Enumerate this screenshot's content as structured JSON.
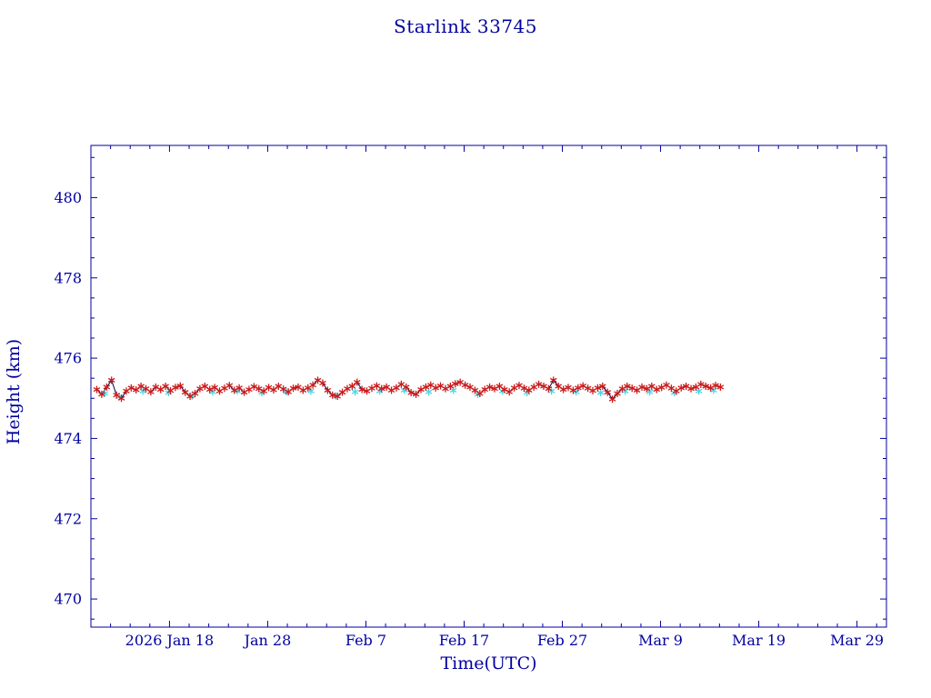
{
  "chart_data": {
    "type": "scatter",
    "title": "Starlink 33745",
    "xlabel": "Time(UTC)",
    "ylabel": "Height (km)",
    "x_axis": {
      "unit": "days from 2026 Jan 10 UTC",
      "range": [
        0,
        81
      ],
      "major_ticks": [
        {
          "day": 8,
          "label": "2026 Jan 18"
        },
        {
          "day": 18,
          "label": "Jan 28"
        },
        {
          "day": 28,
          "label": "Feb 7"
        },
        {
          "day": 38,
          "label": "Feb 17"
        },
        {
          "day": 48,
          "label": "Feb 27"
        },
        {
          "day": 58,
          "label": "Mar 9"
        },
        {
          "day": 68,
          "label": "Mar 19"
        },
        {
          "day": 78,
          "label": "Mar 29"
        }
      ],
      "minor_tick_step": 2
    },
    "y_axis": {
      "range": [
        469.3,
        481.3
      ],
      "major_ticks": [
        470,
        472,
        474,
        476,
        478,
        480
      ],
      "minor_tick_step": 0.5
    },
    "grid": false,
    "legend": "none",
    "colors": {
      "axis": "#0000a0",
      "line": "#000040",
      "red_marker": "#cc1a1a",
      "cyan_marker": "#49d5e6"
    },
    "series": [
      {
        "name": "red-series",
        "marker": "asterisk",
        "color_key": "red_marker",
        "connect": true,
        "points": [
          [
            0.6,
            475.22
          ],
          [
            1.1,
            475.1
          ],
          [
            1.6,
            475.28
          ],
          [
            2.1,
            475.45
          ],
          [
            2.6,
            475.08
          ],
          [
            3.1,
            475.0
          ],
          [
            3.6,
            475.18
          ],
          [
            4.1,
            475.26
          ],
          [
            4.6,
            475.21
          ],
          [
            5.1,
            475.3
          ],
          [
            5.6,
            475.24
          ],
          [
            6.1,
            475.16
          ],
          [
            6.6,
            475.28
          ],
          [
            7.1,
            475.22
          ],
          [
            7.6,
            475.3
          ],
          [
            8.1,
            475.19
          ],
          [
            8.6,
            475.27
          ],
          [
            9.1,
            475.31
          ],
          [
            9.6,
            475.15
          ],
          [
            10.1,
            475.05
          ],
          [
            10.6,
            475.12
          ],
          [
            11.1,
            475.24
          ],
          [
            11.6,
            475.3
          ],
          [
            12.1,
            475.22
          ],
          [
            12.6,
            475.27
          ],
          [
            13.1,
            475.18
          ],
          [
            13.6,
            475.25
          ],
          [
            14.1,
            475.32
          ],
          [
            14.6,
            475.2
          ],
          [
            15.1,
            475.26
          ],
          [
            15.6,
            475.15
          ],
          [
            16.1,
            475.22
          ],
          [
            16.6,
            475.29
          ],
          [
            17.1,
            475.24
          ],
          [
            17.6,
            475.18
          ],
          [
            18.1,
            475.27
          ],
          [
            18.6,
            475.21
          ],
          [
            19.1,
            475.3
          ],
          [
            19.6,
            475.23
          ],
          [
            20.1,
            475.16
          ],
          [
            20.6,
            475.25
          ],
          [
            21.1,
            475.28
          ],
          [
            21.6,
            475.2
          ],
          [
            22.1,
            475.26
          ],
          [
            22.6,
            475.33
          ],
          [
            23.1,
            475.45
          ],
          [
            23.6,
            475.38
          ],
          [
            24.1,
            475.2
          ],
          [
            24.6,
            475.08
          ],
          [
            25.1,
            475.05
          ],
          [
            25.6,
            475.15
          ],
          [
            26.1,
            475.24
          ],
          [
            26.6,
            475.3
          ],
          [
            27.1,
            475.4
          ],
          [
            27.6,
            475.22
          ],
          [
            28.1,
            475.18
          ],
          [
            28.6,
            475.25
          ],
          [
            29.1,
            475.31
          ],
          [
            29.6,
            475.24
          ],
          [
            30.1,
            475.28
          ],
          [
            30.6,
            475.2
          ],
          [
            31.1,
            475.26
          ],
          [
            31.6,
            475.35
          ],
          [
            32.1,
            475.28
          ],
          [
            32.6,
            475.14
          ],
          [
            33.1,
            475.1
          ],
          [
            33.6,
            475.22
          ],
          [
            34.1,
            475.28
          ],
          [
            34.6,
            475.33
          ],
          [
            35.1,
            475.26
          ],
          [
            35.6,
            475.31
          ],
          [
            36.1,
            475.24
          ],
          [
            36.6,
            475.3
          ],
          [
            37.1,
            475.36
          ],
          [
            37.6,
            475.4
          ],
          [
            38.1,
            475.33
          ],
          [
            38.6,
            475.28
          ],
          [
            39.1,
            475.2
          ],
          [
            39.6,
            475.12
          ],
          [
            40.1,
            475.22
          ],
          [
            40.6,
            475.28
          ],
          [
            41.1,
            475.24
          ],
          [
            41.6,
            475.3
          ],
          [
            42.1,
            475.22
          ],
          [
            42.6,
            475.16
          ],
          [
            43.1,
            475.26
          ],
          [
            43.6,
            475.32
          ],
          [
            44.1,
            475.25
          ],
          [
            44.6,
            475.2
          ],
          [
            45.1,
            475.28
          ],
          [
            45.6,
            475.35
          ],
          [
            46.1,
            475.3
          ],
          [
            46.6,
            475.24
          ],
          [
            47.1,
            475.45
          ],
          [
            47.6,
            475.3
          ],
          [
            48.1,
            475.22
          ],
          [
            48.6,
            475.27
          ],
          [
            49.1,
            475.2
          ],
          [
            49.6,
            475.26
          ],
          [
            50.1,
            475.31
          ],
          [
            50.6,
            475.25
          ],
          [
            51.1,
            475.19
          ],
          [
            51.6,
            475.26
          ],
          [
            52.1,
            475.3
          ],
          [
            52.6,
            475.15
          ],
          [
            53.1,
            474.98
          ],
          [
            53.6,
            475.12
          ],
          [
            54.1,
            475.24
          ],
          [
            54.6,
            475.3
          ],
          [
            55.1,
            475.25
          ],
          [
            55.6,
            475.2
          ],
          [
            56.1,
            475.28
          ],
          [
            56.6,
            475.24
          ],
          [
            57.1,
            475.3
          ],
          [
            57.6,
            475.22
          ],
          [
            58.1,
            475.27
          ],
          [
            58.6,
            475.33
          ],
          [
            59.1,
            475.25
          ],
          [
            59.6,
            475.18
          ],
          [
            60.1,
            475.26
          ],
          [
            60.6,
            475.3
          ],
          [
            61.1,
            475.24
          ],
          [
            61.6,
            475.28
          ],
          [
            62.1,
            475.35
          ],
          [
            62.6,
            475.3
          ],
          [
            63.1,
            475.26
          ],
          [
            63.6,
            475.32
          ],
          [
            64.1,
            475.28
          ]
        ]
      },
      {
        "name": "cyan-series",
        "marker": "asterisk",
        "color_key": "cyan_marker",
        "connect": false,
        "points": [
          [
            1.4,
            475.12
          ],
          [
            2.9,
            475.04
          ],
          [
            5.3,
            475.18
          ],
          [
            7.9,
            475.14
          ],
          [
            10.3,
            475.06
          ],
          [
            12.4,
            475.16
          ],
          [
            14.9,
            475.18
          ],
          [
            17.4,
            475.14
          ],
          [
            19.9,
            475.16
          ],
          [
            22.4,
            475.18
          ],
          [
            24.9,
            475.06
          ],
          [
            26.9,
            475.16
          ],
          [
            29.4,
            475.18
          ],
          [
            31.9,
            475.2
          ],
          [
            34.4,
            475.16
          ],
          [
            36.9,
            475.2
          ],
          [
            39.4,
            475.1
          ],
          [
            41.9,
            475.18
          ],
          [
            44.4,
            475.14
          ],
          [
            46.9,
            475.18
          ],
          [
            49.4,
            475.16
          ],
          [
            51.9,
            475.14
          ],
          [
            54.4,
            475.18
          ],
          [
            56.9,
            475.16
          ],
          [
            59.4,
            475.14
          ],
          [
            61.9,
            475.18
          ],
          [
            63.4,
            475.2
          ]
        ]
      }
    ]
  }
}
